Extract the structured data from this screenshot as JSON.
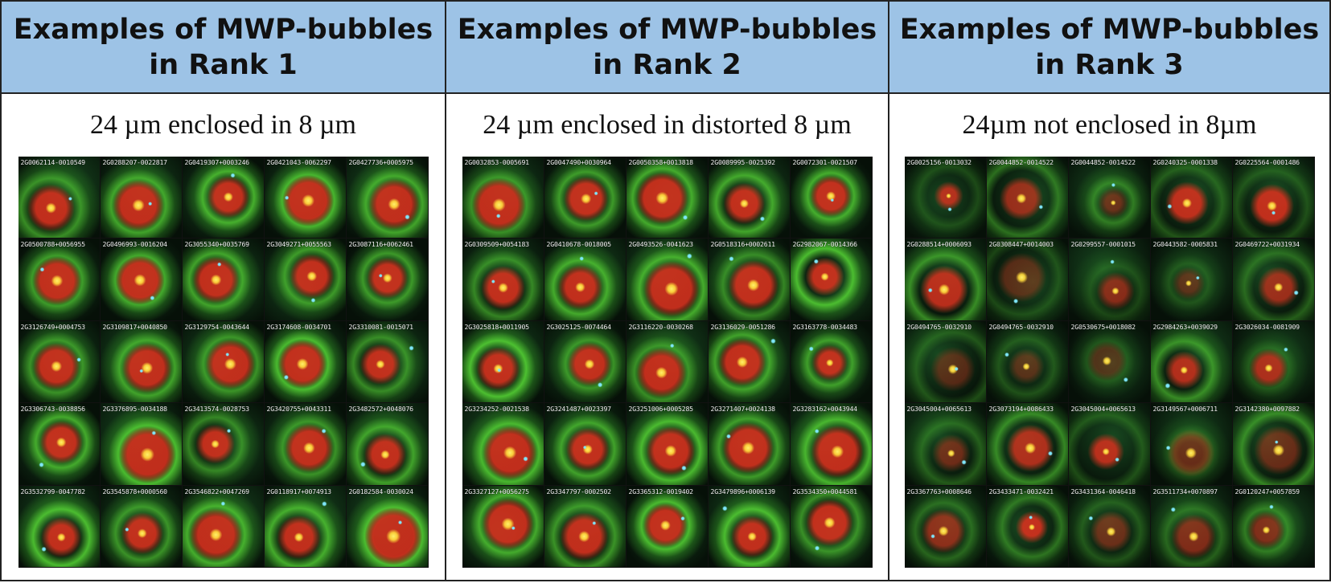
{
  "columns": [
    {
      "title": "Examples of MWP-bubbles\nin Rank 1",
      "subtitle": "24 µm enclosed in 8 µm",
      "tiles": [
        "2G0062114-0010549",
        "2G0288207-0022817",
        "2G0419307+0003246",
        "2G0421043-0062297",
        "2G0427736+0005975",
        "2G0500788+0056955",
        "2G0496993-0016204",
        "2G3055340+0035769",
        "2G3049271+0055563",
        "2G3087116+0062461",
        "2G3126749+0004753",
        "2G3109817+0040850",
        "2G3129754-0043644",
        "2G3174608-0034701",
        "2G3310081-0015071",
        "2G3306743-0038856",
        "2G3376895-0034188",
        "2G3413574-0028753",
        "2G3420755+0043311",
        "2G3482572+0048076",
        "2G3532799-0047782",
        "2G3545878+0000560",
        "2G3546822+0047269",
        "2G0118917+0074913",
        "2G0182584-0030024"
      ]
    },
    {
      "title": "Examples of MWP-bubbles\nin Rank 2",
      "subtitle": "24 µm enclosed in distorted 8 µm",
      "tiles": [
        "2G0032853-0005691",
        "2G0047490+0030964",
        "2G0050358+0013818",
        "2G0089995-0025392",
        "2G0072301-0021507",
        "2G0309509+0054183",
        "2G0410678-0018005",
        "2G0493526-0041623",
        "2G0518316+0002611",
        "2G2982067-0014366",
        "2G3025818+0011905",
        "2G3025125-0074464",
        "2G3116220-0030268",
        "2G3136029-0051286",
        "2G3163778-0034483",
        "2G3234252-0021538",
        "2G3241487+0023397",
        "2G3251006+0005285",
        "2G3271407+0024138",
        "2G3283162+0043944",
        "2G3327127+0056275",
        "2G3347797-0002502",
        "2G3365312-0019402",
        "2G3479896+0006139",
        "2G3534350+0044581"
      ]
    },
    {
      "title": "Examples of MWP-bubbles\nin Rank 3",
      "subtitle": "24µm not enclosed in 8µm",
      "tiles": [
        "2G0025156-0013032",
        "2G0044852-0014522",
        "2G0044852-0014522",
        "2G0240325-0001338",
        "2G0225564-0001486",
        "2G0288514+0006093",
        "2G0308447+0014003",
        "2G0299557-0001015",
        "2G0443582-0005831",
        "2G0469722+0031934",
        "2G0494765-0032910",
        "2G0494765-0032910",
        "2G0530675+0018082",
        "2G2984263+0039029",
        "2G3026034-0081909",
        "2G3045004+0065613",
        "2G3073194+0086433",
        "2G3045004+0065613",
        "2G3149567+0006711",
        "2G3142380+0097882",
        "2G3367763+0008646",
        "2G3433471-0032421",
        "2G3431364-0046418",
        "2G3511734+0070897",
        "2G0120247+0057859"
      ]
    }
  ],
  "colors": {
    "header_fill": "#9dc3e6",
    "border": "#222222",
    "tile_bg": "#000000",
    "shell_green": "#3fae2a",
    "core_red": "#e0301e",
    "star_cyan": "#7fe8ff"
  }
}
